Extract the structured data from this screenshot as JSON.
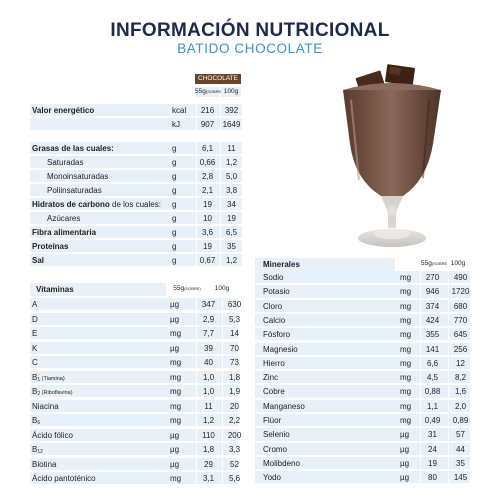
{
  "header": {
    "title": "INFORMACIÓN NUTRICIONAL",
    "subtitle": "BATIDO CHOCOLATE"
  },
  "colors": {
    "title": "#1f2a4a",
    "subtitle": "#3d8fd0",
    "header_brown": "#6b4528",
    "row_shade": "#e9f1f8"
  },
  "macros": {
    "column_header": "CHOCOLATE",
    "col1": "55g",
    "col1_note": "(SOBRE)",
    "col2": "100g",
    "rows": [
      {
        "label": "Valor energético",
        "unit": "kcal",
        "v1": "216",
        "v2": "392",
        "bold": true
      },
      {
        "label": "",
        "unit": "kJ",
        "v1": "907",
        "v2": "1649",
        "bold": false
      },
      {
        "label": "Grasas de las cuales:",
        "unit": "g",
        "v1": "6,1",
        "v2": "11",
        "bold": true
      },
      {
        "label": "Saturadas",
        "unit": "g",
        "v1": "0,66",
        "v2": "1,2",
        "indent": true
      },
      {
        "label": "Monoinsaturadas",
        "unit": "g",
        "v1": "2,8",
        "v2": "5,0",
        "indent": true
      },
      {
        "label": "Poliinsaturadas",
        "unit": "g",
        "v1": "2,1",
        "v2": "3,8",
        "indent": true
      },
      {
        "label": "Hidratos de carbono",
        "label_rest": " de los cuales:",
        "unit": "g",
        "v1": "19",
        "v2": "34",
        "bold": true
      },
      {
        "label": "Azúcares",
        "unit": "g",
        "v1": "10",
        "v2": "19",
        "indent": true
      },
      {
        "label": "Fibra alimentaria",
        "unit": "g",
        "v1": "3,6",
        "v2": "6,5",
        "bold": true
      },
      {
        "label": "Proteínas",
        "unit": "g",
        "v1": "19",
        "v2": "35",
        "bold": true
      },
      {
        "label": "Sal",
        "unit": "g",
        "v1": "0,67",
        "v2": "1,2",
        "bold": true
      }
    ]
  },
  "vitamins": {
    "title": "Vitaminas",
    "col1": "55g",
    "col1_note": "(SOBRE)",
    "col2": "100g",
    "rows": [
      {
        "label": "A",
        "unit": "µg",
        "v1": "347",
        "v2": "630"
      },
      {
        "label": "D",
        "unit": "µg",
        "v1": "2,9",
        "v2": "5,3"
      },
      {
        "label": "E",
        "unit": "mg",
        "v1": "7,7",
        "v2": "14"
      },
      {
        "label": "K",
        "unit": "µg",
        "v1": "39",
        "v2": "70"
      },
      {
        "label": "C",
        "unit": "mg",
        "v1": "40",
        "v2": "73"
      },
      {
        "label": "B",
        "sub": "1",
        "note": " (Tiamina)",
        "unit": "mg",
        "v1": "1,0",
        "v2": "1,8"
      },
      {
        "label": "B",
        "sub": "2",
        "note": " (Riboflavina)",
        "unit": "mg",
        "v1": "1,0",
        "v2": "1,9"
      },
      {
        "label": "Niacina",
        "unit": "mg",
        "v1": "11",
        "v2": "20"
      },
      {
        "label": "B",
        "sub": "6",
        "unit": "mg",
        "v1": "1,2",
        "v2": "2,2"
      },
      {
        "label": "Ácido fólico",
        "unit": "µg",
        "v1": "110",
        "v2": "200"
      },
      {
        "label": "B",
        "sub": "12",
        "unit": "µg",
        "v1": "1,8",
        "v2": "3,3"
      },
      {
        "label": "Biotina",
        "unit": "µg",
        "v1": "29",
        "v2": "52"
      },
      {
        "label": "Ácido pantoténico",
        "unit": "mg",
        "v1": "3,1",
        "v2": "5,6"
      }
    ]
  },
  "minerals": {
    "title": "Minerales",
    "col1": "55g",
    "col1_note": "(SOBRE)",
    "col2": "100g",
    "rows": [
      {
        "label": "Sodio",
        "unit": "mg",
        "v1": "270",
        "v2": "490"
      },
      {
        "label": "Potasio",
        "unit": "mg",
        "v1": "946",
        "v2": "1720"
      },
      {
        "label": "Cloro",
        "unit": "mg",
        "v1": "374",
        "v2": "680"
      },
      {
        "label": "Calcio",
        "unit": "mg",
        "v1": "424",
        "v2": "770"
      },
      {
        "label": "Fósforo",
        "unit": "mg",
        "v1": "355",
        "v2": "645"
      },
      {
        "label": "Magnesio",
        "unit": "mg",
        "v1": "141",
        "v2": "256"
      },
      {
        "label": "Hierro",
        "unit": "mg",
        "v1": "6,6",
        "v2": "12"
      },
      {
        "label": "Zinc",
        "unit": "mg",
        "v1": "4,5",
        "v2": "8,2"
      },
      {
        "label": "Cobre",
        "unit": "mg",
        "v1": "0,88",
        "v2": "1,6"
      },
      {
        "label": "Manganeso",
        "unit": "mg",
        "v1": "1,1",
        "v2": "2,0"
      },
      {
        "label": "Flúor",
        "unit": "mg",
        "v1": "0,49",
        "v2": "0,89"
      },
      {
        "label": "Selenio",
        "unit": "µg",
        "v1": "31",
        "v2": "57"
      },
      {
        "label": "Cromo",
        "unit": "µg",
        "v1": "24",
        "v2": "44"
      },
      {
        "label": "Molibdeno",
        "unit": "µg",
        "v1": "19",
        "v2": "35"
      },
      {
        "label": "Yodo",
        "unit": "µg",
        "v1": "80",
        "v2": "145"
      }
    ]
  },
  "illustration": {
    "icon": "chocolate-milkshake-glass-icon"
  }
}
